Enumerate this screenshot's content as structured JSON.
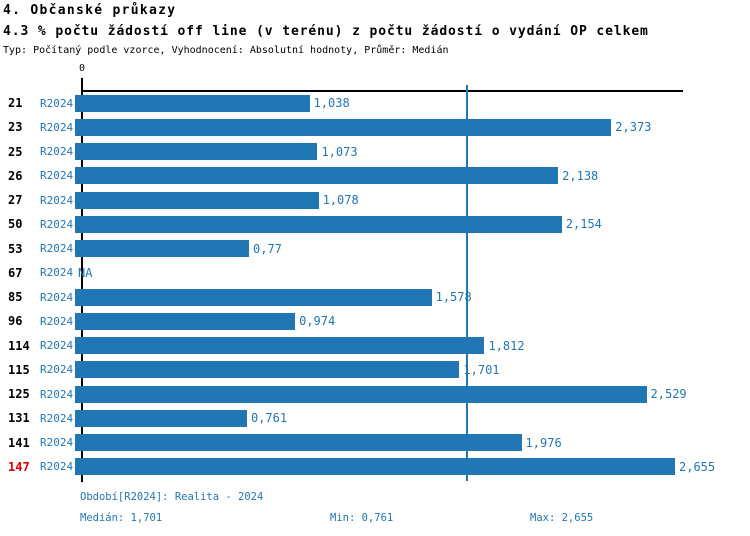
{
  "header": {
    "title": "4. Občanské průkazy",
    "subtitle": "4.3 % počtu žádostí off line (v terénu) z počtu žádostí o vydání OP celkem",
    "meta": "Typ: Počítaný podle vzorce, Vyhodnocení: Absolutní hodnoty, Průměr: Medián"
  },
  "chart_data": {
    "type": "bar",
    "orientation": "horizontal",
    "title": "4.3 % počtu žádostí off line (v terénu) z počtu žádostí o vydání OP celkem",
    "categories": [
      "21",
      "23",
      "25",
      "26",
      "27",
      "50",
      "53",
      "67",
      "85",
      "96",
      "114",
      "115",
      "125",
      "131",
      "141",
      "147"
    ],
    "series_label": "R2024",
    "values": [
      1.038,
      2.373,
      1.073,
      2.138,
      1.078,
      2.154,
      0.77,
      null,
      1.578,
      0.974,
      1.812,
      1.701,
      2.529,
      0.761,
      1.976,
      2.655
    ],
    "value_labels": [
      "1,038",
      "2,373",
      "1,073",
      "2,138",
      "1,078",
      "2,154",
      "0,77",
      "NA",
      "1,578",
      "0,974",
      "1,812",
      "1,701",
      "2,529",
      "0,761",
      "1,976",
      "2,655"
    ],
    "axis": {
      "origin_label": "0",
      "xmin": 0,
      "xmax": 2.655
    },
    "median_line_value": 1.701,
    "highlight_category": "147",
    "legend": "none",
    "grid": "off",
    "colors": {
      "bar": "#2077b4",
      "accent_text": "#2077b4",
      "highlight_row": "#e00000",
      "axis": "#000000"
    }
  },
  "footer": {
    "period": "Období[R2024]: Realita - 2024",
    "median": "Medián: 1,701",
    "min": "Min: 0,761",
    "max": "Max: 2,655"
  }
}
